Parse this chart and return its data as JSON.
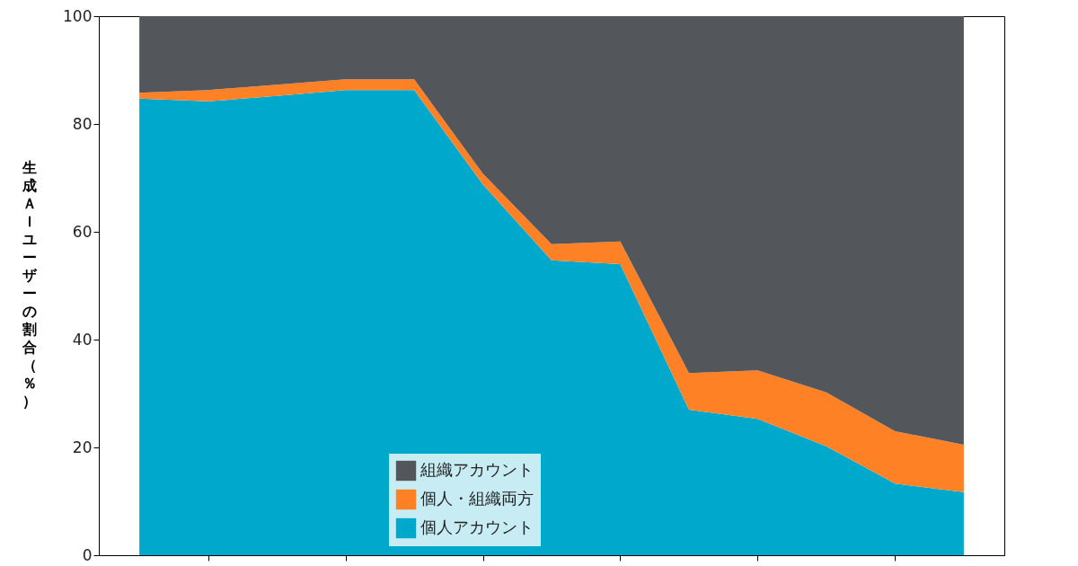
{
  "chart_data": {
    "type": "area",
    "stacked": true,
    "ylabel": "生成ＡＩユーザーの割合（％）",
    "categories": [
      null,
      null,
      null,
      null,
      null,
      null,
      null,
      null,
      null,
      null,
      null,
      null,
      null
    ],
    "series": [
      {
        "name": "個人アカウント",
        "color": "#00a8cc",
        "values": [
          84.7,
          84.2,
          85.2,
          86.3,
          86.3,
          68.8,
          54.7,
          54.0,
          27.0,
          25.3,
          20.2,
          13.3,
          11.7
        ]
      },
      {
        "name": "個人・組織両方",
        "color": "#ff8126",
        "values": [
          1.1,
          2.1,
          2.1,
          2.0,
          2.0,
          2.0,
          3.0,
          4.2,
          6.8,
          9.0,
          10.0,
          9.7,
          8.8
        ]
      },
      {
        "name": "組織アカウント",
        "color": "#53565b",
        "values": [
          14.2,
          13.7,
          12.7,
          11.7,
          11.7,
          29.2,
          42.3,
          41.8,
          66.2,
          65.7,
          69.8,
          77.0,
          79.5
        ]
      }
    ],
    "ylim": [
      0,
      100
    ],
    "yticks": [
      0,
      20,
      40,
      60,
      80,
      100
    ],
    "grid": false,
    "legend": "bottom",
    "tick_labels": "y"
  }
}
